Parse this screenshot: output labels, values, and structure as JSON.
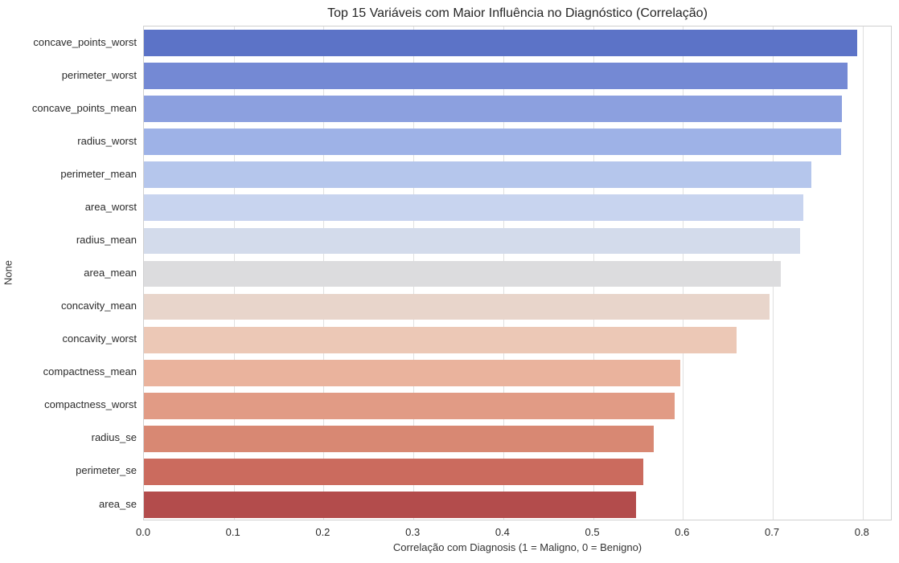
{
  "chart_data": {
    "type": "bar",
    "orientation": "horizontal",
    "title": "Top 15 Variáveis com Maior Influência no Diagnóstico (Correlação)",
    "xlabel": "Correlação com Diagnosis (1 = Maligno, 0 = Benigno)",
    "ylabel": "None",
    "categories": [
      "concave_points_worst",
      "perimeter_worst",
      "concave_points_mean",
      "radius_worst",
      "perimeter_mean",
      "area_worst",
      "radius_mean",
      "area_mean",
      "concavity_mean",
      "concavity_worst",
      "compactness_mean",
      "compactness_worst",
      "radius_se",
      "perimeter_se",
      "area_se"
    ],
    "values": [
      0.794,
      0.783,
      0.777,
      0.776,
      0.743,
      0.734,
      0.73,
      0.709,
      0.696,
      0.66,
      0.597,
      0.591,
      0.567,
      0.556,
      0.548
    ],
    "bar_colors": [
      "#5c73c7",
      "#7489d4",
      "#8ca0df",
      "#9eb2e7",
      "#b5c6ec",
      "#c8d4ef",
      "#d3dbeb",
      "#dcdcde",
      "#e8d5cb",
      "#ecc8b6",
      "#eab39d",
      "#e19b85",
      "#d88873",
      "#cb6b5e",
      "#b34c4c"
    ],
    "xlim": [
      0,
      0.8333
    ],
    "xtick_labels": [
      "0.0",
      "0.1",
      "0.2",
      "0.3",
      "0.4",
      "0.5",
      "0.6",
      "0.7",
      "0.8"
    ],
    "grid": "vertical",
    "legend": "none",
    "palette_name": "coolwarm",
    "spine_color": "#d0d0d0",
    "grid_color": "#e0e0e0",
    "background_color": "#ffffff"
  }
}
